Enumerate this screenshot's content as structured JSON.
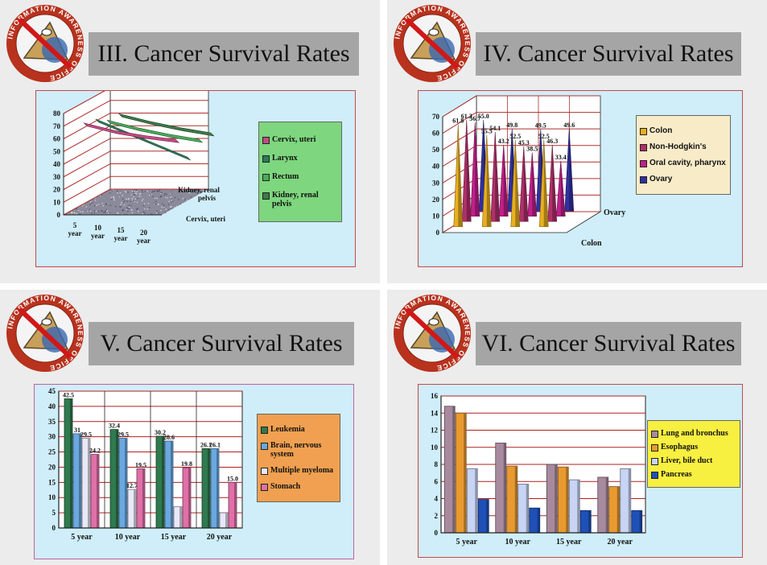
{
  "logo": {
    "ring_text": "INFORMATION AWARENESS OFFICE",
    "icon": "iao-eye-pyramid-seal"
  },
  "colors": {
    "banner": "#a5a5a5",
    "slide_bg": "#ececec",
    "plot_bg": "#cfeefa",
    "frame": "#c24a4a"
  },
  "slides": [
    {
      "title": "III. Cancer Survival Rates"
    },
    {
      "title": "IV. Cancer Survival Rates"
    },
    {
      "title": "V. Cancer Survival Rates"
    },
    {
      "title": "VI. Cancer Survival Rates"
    }
  ],
  "chart_data": [
    {
      "type": "line",
      "style": "3d",
      "categories": [
        "5 year",
        "10 year",
        "15 year",
        "20 year"
      ],
      "series": [
        {
          "name": "Cervix, uteri",
          "values": [
            70,
            64,
            60,
            57
          ],
          "color": "#c44a82"
        },
        {
          "name": "Larynx",
          "values": [
            68,
            58,
            48,
            38
          ],
          "color": "#2d7a5a"
        },
        {
          "name": "Rectum",
          "values": [
            62,
            56,
            51,
            47
          ],
          "color": "#4aaa5a"
        },
        {
          "name": "Kidney, renal pelvis",
          "values": [
            62,
            56,
            51,
            47
          ],
          "color": "#3b7a4a"
        }
      ],
      "depth_labels": [
        "Kidney, renal pelvis",
        "Cervix, uteri"
      ],
      "yticks": [
        0,
        10,
        20,
        30,
        40,
        50,
        60,
        70,
        80
      ],
      "ylim": [
        0,
        80
      ],
      "legend_position": "right",
      "legend_bg": "#7ed67e"
    },
    {
      "type": "bar",
      "style": "3d-cone",
      "categories": [
        "5 year",
        "10 year",
        "15 year",
        "20 year"
      ],
      "series": [
        {
          "name": "Colon",
          "values": [
            61.8,
            55.5,
            52.5,
            52.5
          ],
          "color": "#e8b020"
        },
        {
          "name": "Non-Hodgkin's",
          "values": [
            61.3,
            54.1,
            45.3,
            46.3
          ],
          "color": "#b0306a"
        },
        {
          "name": "Oral cavity, pharynx",
          "values": [
            56.7,
            43.2,
            38.5,
            33.4
          ],
          "color": "#c0208a"
        },
        {
          "name": "Ovary",
          "values": [
            55.0,
            49.8,
            49.5,
            49.6
          ],
          "color": "#3030a0"
        }
      ],
      "depth_labels": [
        "Ovary",
        "Colon"
      ],
      "yticks": [
        0,
        10,
        20,
        30,
        40,
        50,
        60,
        70
      ],
      "ylim": [
        0,
        70
      ],
      "legend_position": "right",
      "legend_bg": "#f8ecc8"
    },
    {
      "type": "bar",
      "categories": [
        "5 year",
        "10 year",
        "15 year",
        "20 year"
      ],
      "series": [
        {
          "name": "Leukemia",
          "values": [
            42.5,
            32.4,
            30.2,
            26.1
          ],
          "color": "#2f7a4f"
        },
        {
          "name": "Brain, nervous system",
          "values": [
            31.0,
            29.5,
            28.6,
            26.1
          ],
          "color": "#6aa8e0"
        },
        {
          "name": "Multiple myeloma",
          "values": [
            29.5,
            12.7,
            7.0,
            5.0
          ],
          "color": "#e8e8f8"
        },
        {
          "name": "Stomach",
          "values": [
            24.2,
            19.5,
            19.8,
            15.0
          ],
          "color": "#e070a8"
        }
      ],
      "data_labels": [
        [
          "42.5",
          "31",
          "29.5",
          "24.2"
        ],
        [
          "32.4",
          "29.5",
          "12.7",
          "19.5"
        ],
        [
          "30.2",
          "28.6",
          "",
          "19.8"
        ],
        [
          "26.1",
          "26.1",
          "",
          "15.0"
        ]
      ],
      "yticks": [
        0,
        5,
        10,
        15,
        20,
        25,
        30,
        35,
        40,
        45
      ],
      "ylim": [
        0,
        45
      ],
      "legend_position": "right",
      "legend_bg": "#f0a050"
    },
    {
      "type": "bar",
      "categories": [
        "5 year",
        "10 year",
        "15 year",
        "20 year"
      ],
      "series": [
        {
          "name": "Lung and bronchus",
          "values": [
            14.8,
            10.5,
            8.0,
            6.5
          ],
          "color": "#a88a9e"
        },
        {
          "name": "Esophagus",
          "values": [
            14.0,
            7.8,
            7.7,
            5.4
          ],
          "color": "#e89a30"
        },
        {
          "name": "Liver, bile duct",
          "values": [
            7.5,
            5.7,
            6.2,
            7.5
          ],
          "color": "#c8d4f4"
        },
        {
          "name": "Pancreas",
          "values": [
            3.9,
            2.9,
            2.6,
            2.6
          ],
          "color": "#1e50b8"
        }
      ],
      "yticks": [
        0,
        2,
        4,
        6,
        8,
        10,
        12,
        14,
        16
      ],
      "ylim": [
        0,
        16
      ],
      "legend_position": "right",
      "legend_bg": "#f8f040"
    }
  ]
}
